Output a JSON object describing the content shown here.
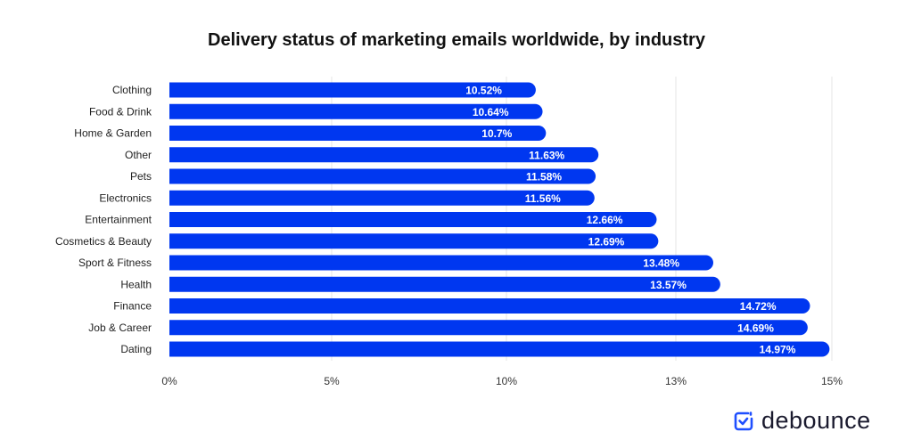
{
  "chart_data": {
    "type": "bar",
    "orientation": "horizontal",
    "title": "Delivery status of marketing emails worldwide, by industry",
    "categories": [
      "Clothing",
      "Food & Drink",
      "Home & Garden",
      "Other",
      "Pets",
      "Electronics",
      "Entertainment",
      "Cosmetics & Beauty",
      "Sport & Fitness",
      "Health",
      "Finance",
      "Job & Career",
      "Dating"
    ],
    "values": [
      10.52,
      10.64,
      10.7,
      11.63,
      11.58,
      11.56,
      12.66,
      12.69,
      13.48,
      13.57,
      14.72,
      14.69,
      14.97
    ],
    "value_labels": [
      "10.52%",
      "10.64%",
      "10.7%",
      "11.63%",
      "11.58%",
      "11.56%",
      "12.66%",
      "12.69%",
      "13.48%",
      "13.57%",
      "14.72%",
      "14.69%",
      "14.97%"
    ],
    "xticks": [
      0,
      5,
      10,
      13,
      15
    ],
    "xtick_labels": [
      "0%",
      "5%",
      "10%",
      "13%",
      "15%"
    ],
    "xlim": [
      0,
      15
    ],
    "grid": true,
    "bar_color": "#0037F0"
  },
  "logo": {
    "text": "debounce",
    "color": "#1F4FFF"
  }
}
